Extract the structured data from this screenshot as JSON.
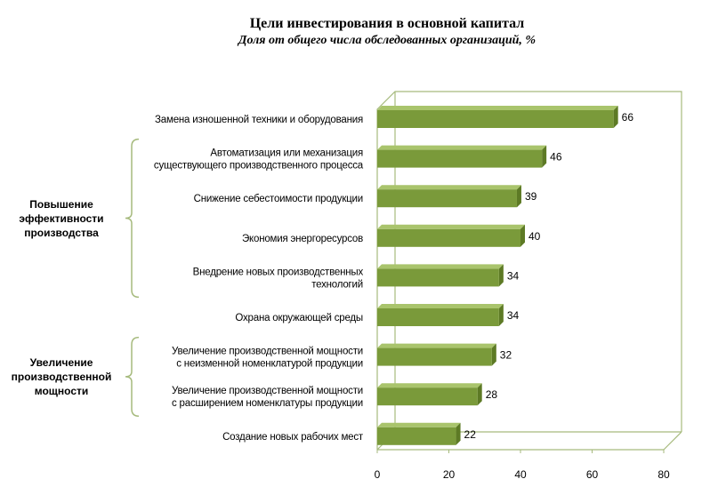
{
  "chart_data": {
    "type": "bar",
    "orientation": "horizontal",
    "title": "Цели инвестирования в основной капитал",
    "subtitle": "Доля от общего числа обследованных организаций, %",
    "categories": [
      [
        "Замена изношенной техники и оборудования"
      ],
      [
        "Автоматизация или механизация",
        "существующего производственного процесса"
      ],
      [
        "Снижение себестоимости продукции"
      ],
      [
        "Экономия энергоресурсов"
      ],
      [
        "Внедрение новых производственных",
        "технологий"
      ],
      [
        "Охрана окружающей среды"
      ],
      [
        "Увеличение производственной мощности",
        "с неизменной номенклатурой продукции"
      ],
      [
        "Увеличение производственной мощности",
        "с расширением номенклатуры продукции"
      ],
      [
        "Создание новых рабочих мест"
      ]
    ],
    "values": [
      66,
      46,
      39,
      40,
      34,
      34,
      32,
      28,
      22
    ],
    "xlim": [
      0,
      80
    ],
    "xticks": [
      0,
      20,
      40,
      60,
      80
    ],
    "bar_color": "#7a9a3a",
    "grid": false,
    "groups": [
      {
        "label": "Повышение эффективности производства",
        "lines": [
          "Повышение",
          "эффективности",
          "производства"
        ],
        "from": 1,
        "to": 4
      },
      {
        "label": "Увеличение производственной мощности",
        "lines": [
          "Увеличение",
          "производственной",
          "мощности"
        ],
        "from": 6,
        "to": 7
      }
    ]
  }
}
